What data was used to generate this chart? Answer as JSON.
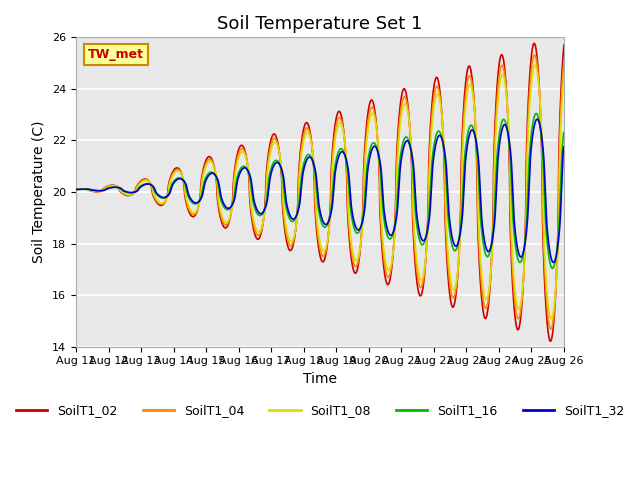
{
  "title": "Soil Temperature Set 1",
  "xlabel": "Time",
  "ylabel": "Soil Temperature (C)",
  "ylim": [
    14,
    26
  ],
  "xtick_labels": [
    "Aug 11",
    "Aug 12",
    "Aug 13",
    "Aug 14",
    "Aug 15",
    "Aug 16",
    "Aug 17",
    "Aug 18",
    "Aug 19",
    "Aug 20",
    "Aug 21",
    "Aug 22",
    "Aug 23",
    "Aug 24",
    "Aug 25",
    "Aug 26"
  ],
  "series_names": [
    "SoilT1_02",
    "SoilT1_04",
    "SoilT1_08",
    "SoilT1_16",
    "SoilT1_32"
  ],
  "series_colors": [
    "#cc0000",
    "#ff8800",
    "#dddd00",
    "#00bb00",
    "#0000cc"
  ],
  "annotation_text": "TW_met",
  "annotation_color": "#cc0000",
  "annotation_bg": "#ffff99",
  "annotation_border": "#cc8800",
  "background_color": "#e8e8e8",
  "fig_bg": "#ffffff",
  "title_fontsize": 13,
  "label_fontsize": 10,
  "tick_fontsize": 8,
  "legend_fontsize": 9
}
